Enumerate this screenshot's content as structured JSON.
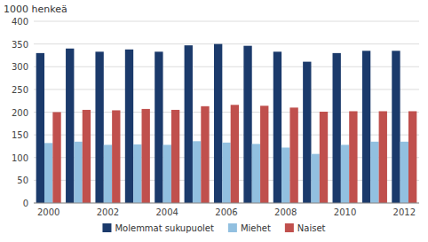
{
  "chart_data": {
    "type": "bar",
    "ylabel": "1000 henkeä",
    "categories": [
      "2000",
      null,
      "2002",
      null,
      "2004",
      null,
      "2006",
      null,
      "2008",
      null,
      "2010",
      null,
      "2012"
    ],
    "series": [
      {
        "name": "Molemmat sukupuolet",
        "color": "#1b3a6b",
        "values": [
          330,
          340,
          333,
          338,
          333,
          347,
          350,
          346,
          333,
          311,
          330,
          335,
          335
        ]
      },
      {
        "name": "Miehet",
        "color": "#92c0e0",
        "values": [
          132,
          135,
          128,
          129,
          128,
          136,
          133,
          130,
          122,
          108,
          128,
          135,
          135
        ]
      },
      {
        "name": "Naiset",
        "color": "#c0504d",
        "values": [
          200,
          205,
          204,
          207,
          205,
          213,
          216,
          214,
          210,
          201,
          202,
          202,
          202
        ]
      }
    ],
    "ylim": [
      0,
      400
    ],
    "yticks": [
      0,
      50,
      100,
      150,
      200,
      250,
      300,
      350,
      400
    ],
    "grid": true,
    "legend": "bottom"
  }
}
